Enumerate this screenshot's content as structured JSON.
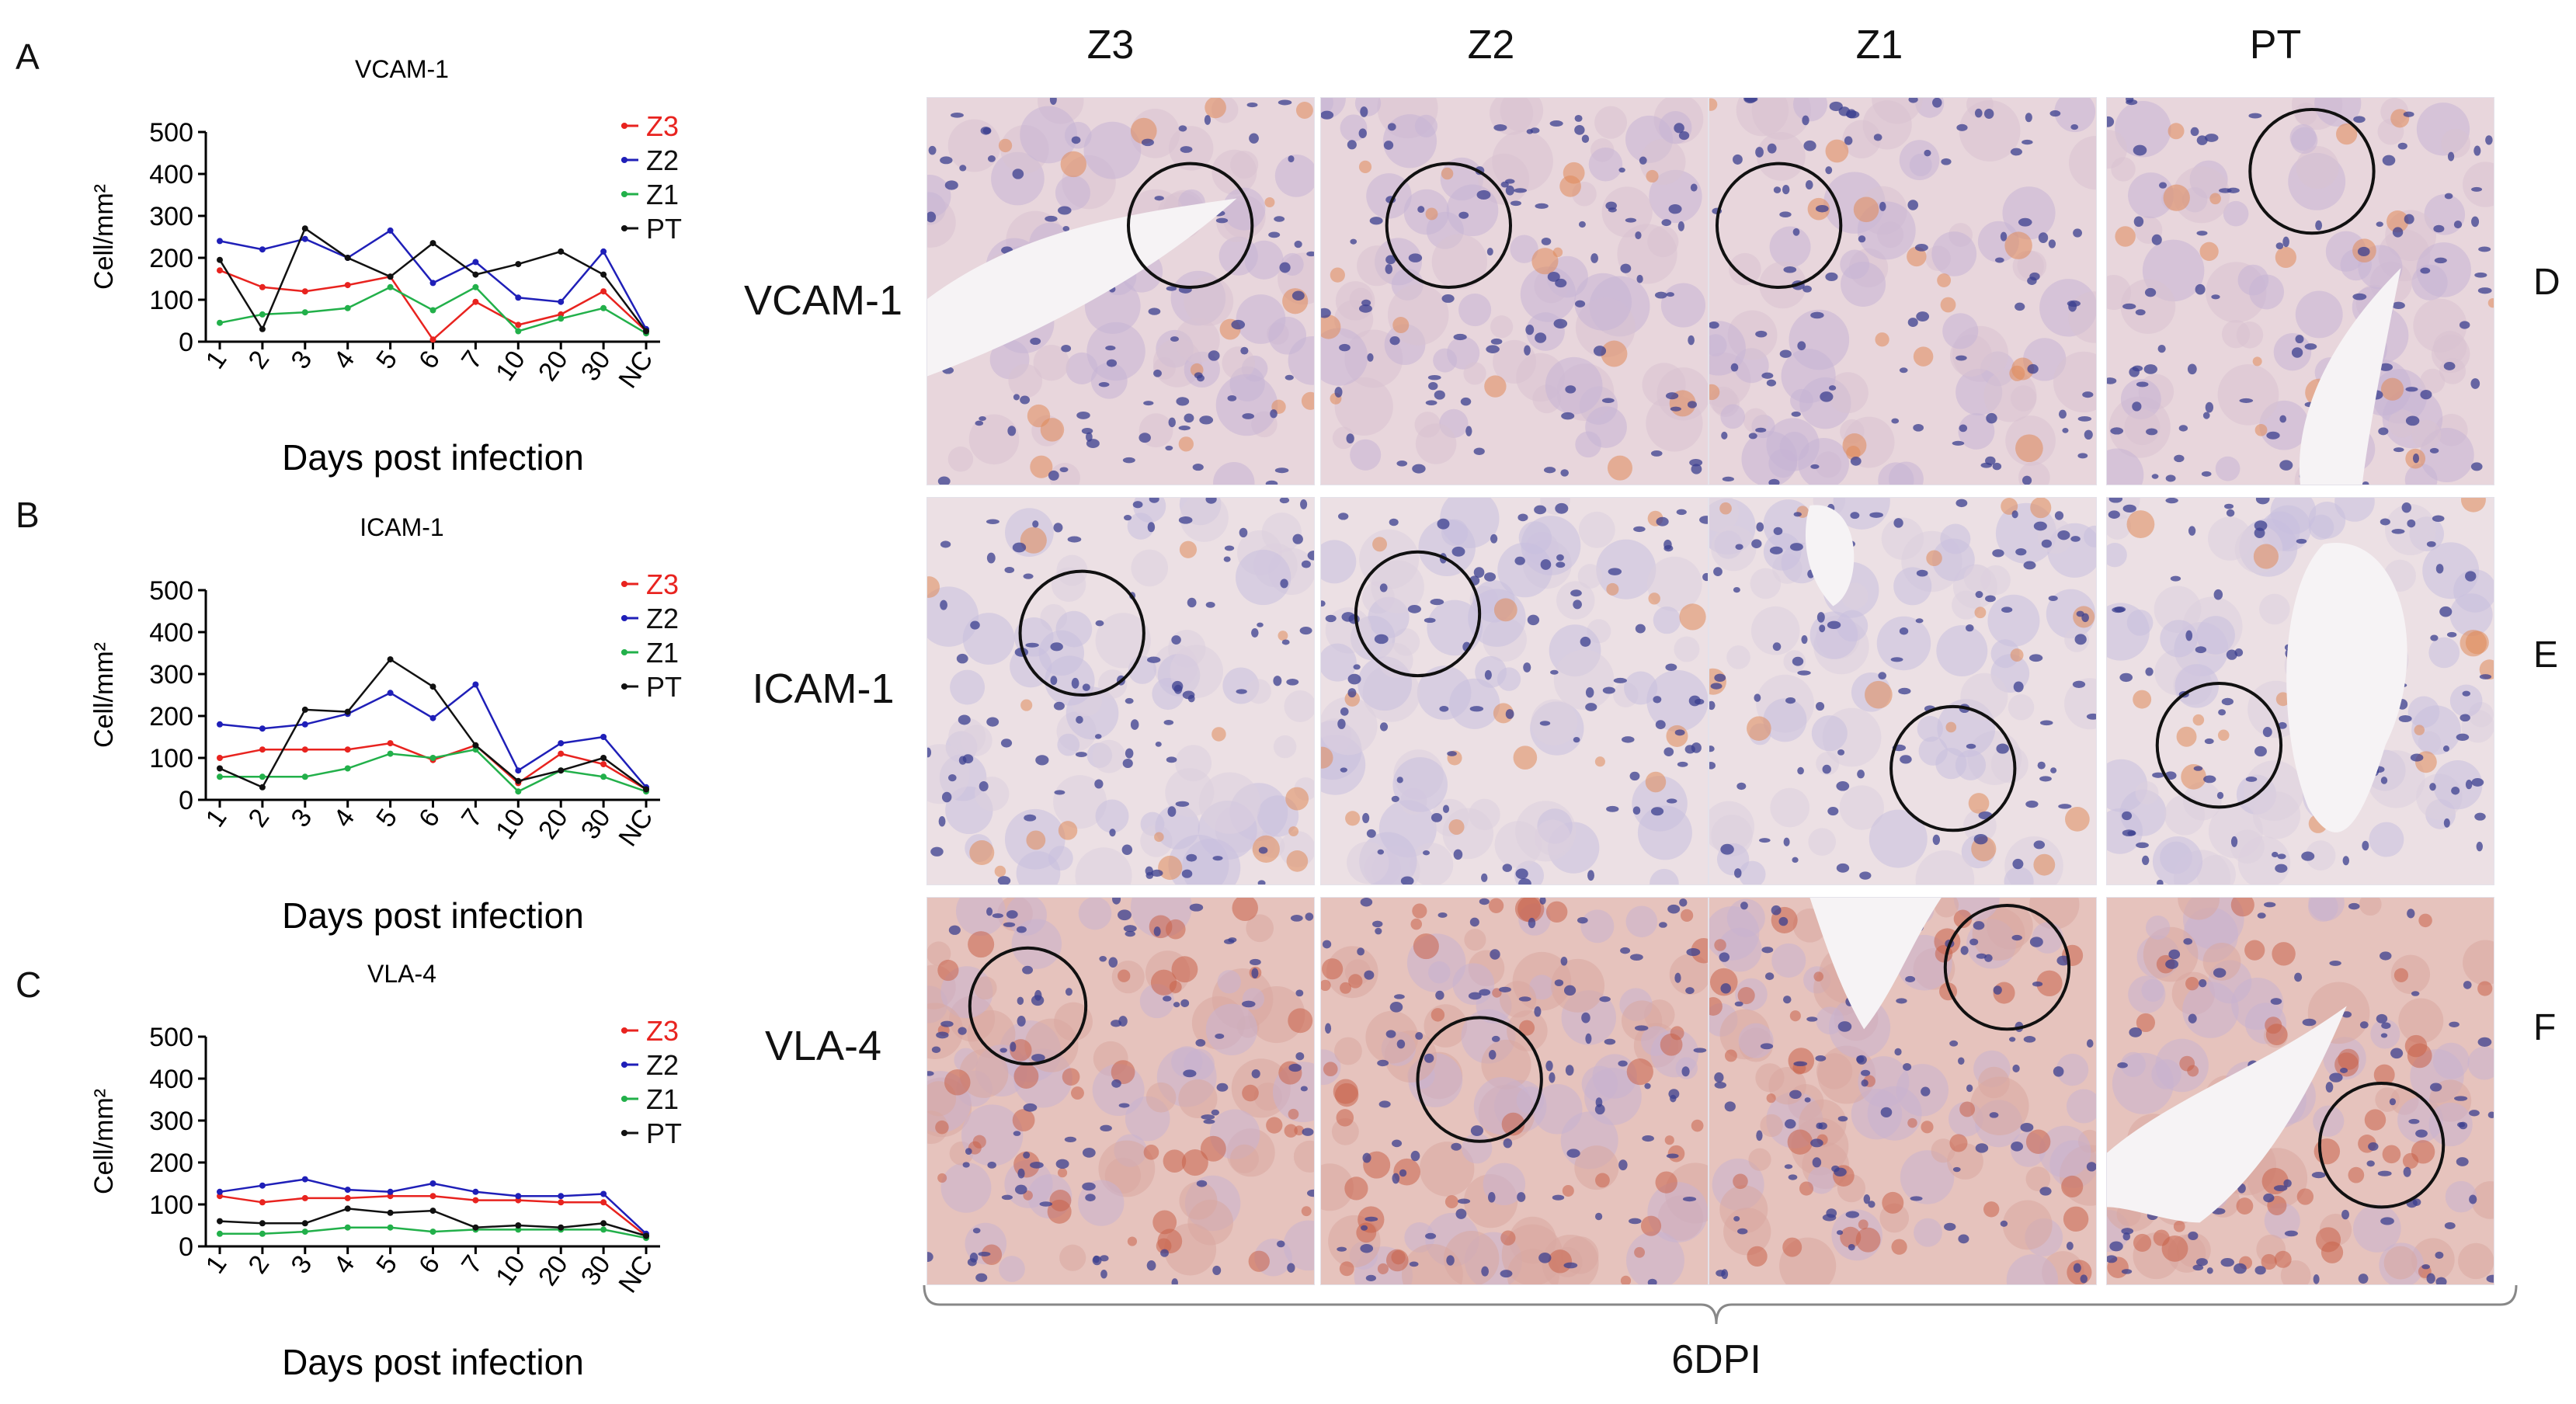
{
  "figure": {
    "panel_letters": {
      "a": "A",
      "b": "B",
      "c": "C",
      "d": "D",
      "e": "E",
      "f": "F"
    },
    "column_headers": [
      "Z3",
      "Z2",
      "Z1",
      "PT"
    ],
    "row_labels": [
      "VCAM-1",
      "ICAM-1",
      "VLA-4"
    ],
    "bottom_caption": "6DPI"
  },
  "series_colors": {
    "Z3": "#e8231f",
    "Z2": "#1f1fb8",
    "Z1": "#22b04a",
    "PT": "#111111"
  },
  "chart_data": [
    {
      "type": "line",
      "title": "VCAM-1",
      "xlabel": "Days post infection",
      "ylabel": "Cell/mm²",
      "ylim": [
        0,
        500
      ],
      "yticks": [
        "0",
        "100",
        "200",
        "300",
        "400",
        "500"
      ],
      "categories": [
        "1",
        "2",
        "3",
        "4",
        "5",
        "6",
        "7",
        "10",
        "20",
        "30",
        "NC"
      ],
      "series": [
        {
          "name": "Z3",
          "values": [
            170,
            130,
            120,
            135,
            155,
            5,
            95,
            40,
            65,
            120,
            25
          ]
        },
        {
          "name": "Z2",
          "values": [
            240,
            220,
            245,
            200,
            265,
            140,
            190,
            105,
            95,
            215,
            30
          ]
        },
        {
          "name": "Z1",
          "values": [
            45,
            65,
            70,
            80,
            130,
            75,
            130,
            25,
            55,
            80,
            20
          ]
        },
        {
          "name": "PT",
          "values": [
            195,
            30,
            270,
            200,
            155,
            235,
            160,
            185,
            215,
            160,
            25
          ]
        }
      ],
      "legend": "top-right"
    },
    {
      "type": "line",
      "title": "ICAM-1",
      "xlabel": "Days post infection",
      "ylabel": "Cell/mm²",
      "ylim": [
        0,
        500
      ],
      "yticks": [
        "0",
        "100",
        "200",
        "300",
        "400",
        "500"
      ],
      "categories": [
        "1",
        "2",
        "3",
        "4",
        "5",
        "6",
        "7",
        "10",
        "20",
        "30",
        "NC"
      ],
      "series": [
        {
          "name": "Z3",
          "values": [
            100,
            120,
            120,
            120,
            135,
            95,
            130,
            40,
            110,
            85,
            25
          ]
        },
        {
          "name": "Z2",
          "values": [
            180,
            170,
            180,
            205,
            255,
            195,
            275,
            70,
            135,
            150,
            30
          ]
        },
        {
          "name": "Z1",
          "values": [
            55,
            55,
            55,
            75,
            110,
            100,
            120,
            20,
            70,
            55,
            20
          ]
        },
        {
          "name": "PT",
          "values": [
            75,
            30,
            215,
            210,
            335,
            270,
            130,
            45,
            70,
            100,
            25
          ]
        }
      ],
      "legend": "top-right"
    },
    {
      "type": "line",
      "title": "VLA-4",
      "xlabel": "Days post infection",
      "ylabel": "Cell/mm²",
      "ylim": [
        0,
        500
      ],
      "yticks": [
        "0",
        "100",
        "200",
        "300",
        "400",
        "500"
      ],
      "categories": [
        "1",
        "2",
        "3",
        "4",
        "5",
        "6",
        "7",
        "10",
        "20",
        "30",
        "NC"
      ],
      "series": [
        {
          "name": "Z3",
          "values": [
            120,
            105,
            115,
            115,
            120,
            120,
            110,
            110,
            105,
            105,
            25
          ]
        },
        {
          "name": "Z2",
          "values": [
            130,
            145,
            160,
            135,
            130,
            150,
            130,
            120,
            120,
            125,
            30
          ]
        },
        {
          "name": "Z1",
          "values": [
            30,
            30,
            35,
            45,
            45,
            35,
            40,
            40,
            40,
            40,
            20
          ]
        },
        {
          "name": "PT",
          "values": [
            60,
            55,
            55,
            90,
            80,
            85,
            45,
            50,
            45,
            55,
            25
          ]
        }
      ],
      "legend": "top-right"
    }
  ]
}
